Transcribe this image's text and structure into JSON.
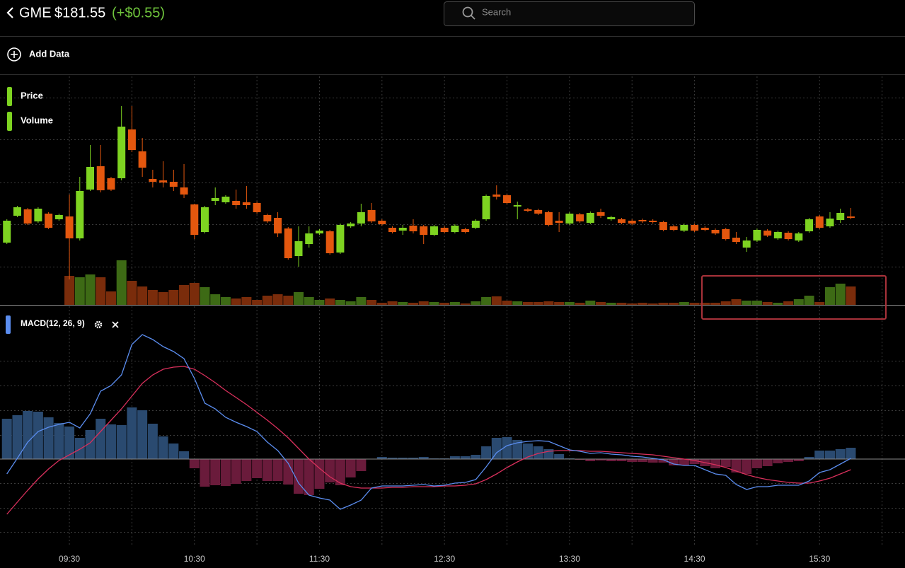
{
  "header": {
    "symbol": "GME",
    "price": "$181.55",
    "change": "(+$0.55)",
    "change_color": "#6fc43c"
  },
  "search": {
    "placeholder": "Search"
  },
  "toolbar": {
    "add_data": "Add Data"
  },
  "chart_data": [
    {
      "type": "candlestick",
      "xlim": [
        -0.66,
        86.2
      ],
      "ylim": [
        170,
        202
      ],
      "y2lim": [
        0,
        320
      ],
      "grid": true,
      "series": [
        {
          "name": "Price",
          "color": "#7ed321",
          "up_color": "#7ed321",
          "down_color": "#e4570e",
          "open": [
            178.7,
            182.5,
            183.4,
            181.7,
            182.8,
            182.0,
            182.4,
            179.3,
            186.2,
            189.5,
            187.8,
            187.8,
            194.7,
            191.6,
            187.7,
            187.5,
            187.3,
            186.5,
            184.1,
            180.2,
            184.6,
            184.4,
            184.6,
            184.4,
            184.3,
            182.6,
            182.2,
            180.7,
            176.8,
            178.5,
            180.0,
            180.3,
            177.3,
            181.0,
            181.4,
            183.3,
            181.8,
            180.8,
            180.4,
            181.1,
            181.0,
            179.8,
            180.8,
            180.2,
            180.6,
            180.8,
            182.0,
            185.5,
            185.4,
            183.8,
            183.4,
            183.3,
            183.0,
            181.8,
            181.4,
            182.7,
            181.5,
            183.0,
            182.0,
            182.0,
            181.8,
            181.9,
            181.8,
            181.6,
            181.0,
            180.4,
            181.2,
            180.8,
            180.5,
            180.6,
            179.4,
            178.0,
            179.0,
            180.4,
            179.3,
            180.1,
            179.0,
            180.3,
            182.4,
            181.0,
            181.9,
            182.4
          ],
          "high": [
            182.0,
            183.9,
            183.6,
            183.7,
            183.0,
            182.8,
            185.5,
            188.0,
            192.5,
            192.5,
            188.0,
            198.0,
            198.0,
            193.5,
            189.0,
            190.2,
            189.0,
            189.8,
            184.2,
            183.9,
            186.5,
            185.4,
            186.2,
            186.7,
            184.5,
            182.8,
            183.0,
            180.9,
            181.0,
            181.0,
            180.6,
            180.5,
            181.4,
            181.6,
            184.2,
            184.3,
            182.0,
            181.0,
            181.2,
            182.0,
            181.2,
            181.2,
            181.0,
            181.3,
            180.8,
            182.0,
            185.5,
            186.8,
            185.6,
            184.5,
            183.6,
            183.5,
            183.2,
            183.0,
            183.0,
            182.9,
            183.1,
            183.5,
            182.5,
            182.2,
            182.0,
            182.1,
            182.0,
            181.8,
            181.2,
            181.4,
            181.4,
            181.0,
            180.7,
            180.8,
            180.2,
            179.5,
            180.7,
            180.6,
            180.4,
            180.3,
            180.2,
            182.2,
            182.6,
            183.0,
            183.5,
            183.6
          ],
          "low": [
            178.5,
            182.3,
            181.2,
            181.5,
            180.6,
            181.8,
            173.5,
            179.0,
            186.0,
            185.8,
            186.0,
            187.5,
            191.5,
            188.0,
            186.5,
            186.5,
            186.0,
            185.0,
            179.2,
            180.0,
            184.0,
            184.2,
            183.5,
            183.5,
            182.8,
            181.5,
            179.5,
            176.3,
            175.3,
            178.0,
            179.8,
            177.0,
            177.1,
            180.8,
            181.0,
            181.5,
            181.1,
            180.0,
            179.8,
            180.0,
            178.5,
            179.6,
            180.0,
            180.0,
            180.0,
            180.6,
            181.8,
            184.8,
            184.1,
            182.0,
            183.0,
            182.6,
            181.0,
            180.2,
            181.2,
            181.5,
            181.3,
            182.2,
            181.8,
            181.3,
            181.2,
            181.5,
            181.4,
            180.3,
            180.3,
            180.2,
            180.2,
            180.3,
            179.8,
            179.0,
            178.5,
            177.4,
            178.8,
            179.5,
            179.1,
            179.0,
            178.8,
            180.1,
            180.6,
            180.8,
            181.5,
            182.0
          ],
          "close": [
            181.8,
            183.7,
            181.4,
            183.5,
            180.8,
            182.6,
            179.3,
            186.0,
            189.4,
            186.1,
            186.2,
            195.1,
            191.8,
            189.3,
            187.3,
            187.2,
            186.6,
            185.5,
            179.8,
            183.7,
            185.0,
            185.2,
            184.0,
            184.0,
            183.0,
            181.7,
            180.0,
            176.5,
            178.9,
            180.0,
            180.4,
            177.2,
            181.2,
            181.4,
            183.0,
            181.7,
            181.3,
            180.2,
            180.8,
            180.3,
            179.8,
            181.0,
            180.2,
            181.1,
            180.2,
            181.8,
            185.3,
            185.2,
            184.3,
            184.0,
            183.2,
            182.8,
            181.2,
            181.5,
            182.8,
            181.7,
            182.9,
            182.5,
            182.3,
            181.5,
            181.4,
            181.7,
            181.6,
            180.5,
            180.5,
            181.2,
            180.4,
            180.5,
            180.0,
            179.2,
            178.8,
            179.0,
            180.5,
            179.7,
            180.2,
            179.2,
            180.0,
            182.0,
            180.8,
            182.1,
            182.9,
            182.2
          ]
        },
        {
          "name": "Volume",
          "type": "bar",
          "axis": "y2",
          "color": "#7ed321",
          "up_color": "#3d6a15",
          "down_color": "#7a2c0b",
          "values": [
            0,
            0,
            0,
            0,
            0,
            0,
            41,
            39,
            43,
            39,
            19,
            63,
            34,
            26,
            21,
            18,
            21,
            28,
            31,
            25,
            15,
            11,
            9,
            11,
            7,
            13,
            15,
            13,
            18,
            11,
            7,
            9,
            7,
            5,
            11,
            7,
            3,
            5,
            4,
            3,
            5,
            4,
            3,
            4,
            2,
            5,
            11,
            12,
            6,
            5,
            4,
            4,
            5,
            4,
            4,
            3,
            6,
            4,
            3,
            3,
            2,
            3,
            2,
            3,
            3,
            4,
            3,
            3,
            3,
            5,
            8,
            6,
            6,
            4,
            3,
            5,
            8,
            13,
            4,
            25,
            30,
            26
          ]
        }
      ]
    },
    {
      "type": "macd",
      "title": "MACD(12, 26, 9)",
      "xlim": [
        -0.66,
        86.2
      ],
      "ylim": [
        -1.1,
        2.1
      ],
      "xticks": [
        {
          "value": 6,
          "label": "09:30"
        },
        {
          "value": 18,
          "label": "10:30"
        },
        {
          "value": 30,
          "label": "11:30"
        },
        {
          "value": 42,
          "label": "12:30"
        },
        {
          "value": 54,
          "label": "13:30"
        },
        {
          "value": 66,
          "label": "14:30"
        },
        {
          "value": 78,
          "label": "15:30"
        }
      ],
      "grid": true,
      "macd": {
        "color": "#5b8def",
        "values": [
          -0.21,
          0.01,
          0.24,
          0.39,
          0.45,
          0.49,
          0.52,
          0.44,
          0.64,
          0.96,
          1.04,
          1.19,
          1.62,
          1.76,
          1.69,
          1.59,
          1.52,
          1.42,
          1.14,
          0.79,
          0.71,
          0.59,
          0.52,
          0.46,
          0.39,
          0.24,
          0.12,
          -0.06,
          -0.34,
          -0.51,
          -0.55,
          -0.58,
          -0.71,
          -0.65,
          -0.58,
          -0.41,
          -0.38,
          -0.38,
          -0.38,
          -0.37,
          -0.36,
          -0.38,
          -0.37,
          -0.34,
          -0.33,
          -0.29,
          -0.11,
          0.09,
          0.19,
          0.23,
          0.25,
          0.26,
          0.25,
          0.19,
          0.13,
          0.11,
          0.08,
          0.09,
          0.07,
          0.06,
          0.04,
          0.03,
          0.01,
          -0.01,
          -0.07,
          -0.09,
          -0.09,
          -0.15,
          -0.21,
          -0.23,
          -0.36,
          -0.43,
          -0.39,
          -0.39,
          -0.37,
          -0.37,
          -0.37,
          -0.31,
          -0.19,
          -0.15,
          -0.07,
          0.01
        ]
      },
      "signal": {
        "color": "#d9305c",
        "values": [
          -0.78,
          -0.61,
          -0.44,
          -0.28,
          -0.14,
          -0.02,
          0.06,
          0.14,
          0.23,
          0.39,
          0.55,
          0.71,
          0.89,
          1.07,
          1.19,
          1.27,
          1.3,
          1.31,
          1.27,
          1.18,
          1.08,
          0.97,
          0.87,
          0.77,
          0.66,
          0.55,
          0.43,
          0.3,
          0.15,
          0.0,
          -0.13,
          -0.25,
          -0.34,
          -0.39,
          -0.41,
          -0.41,
          -0.41,
          -0.4,
          -0.4,
          -0.39,
          -0.39,
          -0.39,
          -0.38,
          -0.38,
          -0.37,
          -0.35,
          -0.29,
          -0.21,
          -0.12,
          -0.04,
          0.03,
          0.08,
          0.11,
          0.12,
          0.12,
          0.12,
          0.11,
          0.11,
          0.1,
          0.09,
          0.08,
          0.07,
          0.06,
          0.04,
          0.02,
          0.0,
          -0.02,
          -0.05,
          -0.08,
          -0.12,
          -0.17,
          -0.22,
          -0.26,
          -0.29,
          -0.31,
          -0.33,
          -0.34,
          -0.34,
          -0.31,
          -0.27,
          -0.21,
          -0.15
        ]
      },
      "histogram": {
        "up_color": "#2a4a70",
        "down_color": "#6a1b3b",
        "values": [
          0.57,
          0.62,
          0.68,
          0.67,
          0.59,
          0.51,
          0.46,
          0.3,
          0.41,
          0.57,
          0.49,
          0.48,
          0.73,
          0.69,
          0.5,
          0.32,
          0.22,
          0.11,
          -0.13,
          -0.39,
          -0.37,
          -0.38,
          -0.35,
          -0.31,
          -0.27,
          -0.31,
          -0.31,
          -0.36,
          -0.49,
          -0.51,
          -0.42,
          -0.33,
          -0.37,
          -0.26,
          -0.17,
          0.0,
          0.03,
          0.02,
          0.02,
          0.02,
          0.03,
          0.01,
          0.01,
          0.04,
          0.04,
          0.06,
          0.18,
          0.3,
          0.31,
          0.27,
          0.22,
          0.18,
          0.14,
          0.07,
          0.01,
          -0.01,
          -0.03,
          -0.02,
          -0.03,
          -0.03,
          -0.04,
          -0.04,
          -0.05,
          -0.05,
          -0.09,
          -0.09,
          -0.07,
          -0.1,
          -0.13,
          -0.11,
          -0.19,
          -0.21,
          -0.13,
          -0.1,
          -0.06,
          -0.04,
          -0.03,
          0.03,
          0.12,
          0.12,
          0.14,
          0.16
        ]
      }
    }
  ]
}
